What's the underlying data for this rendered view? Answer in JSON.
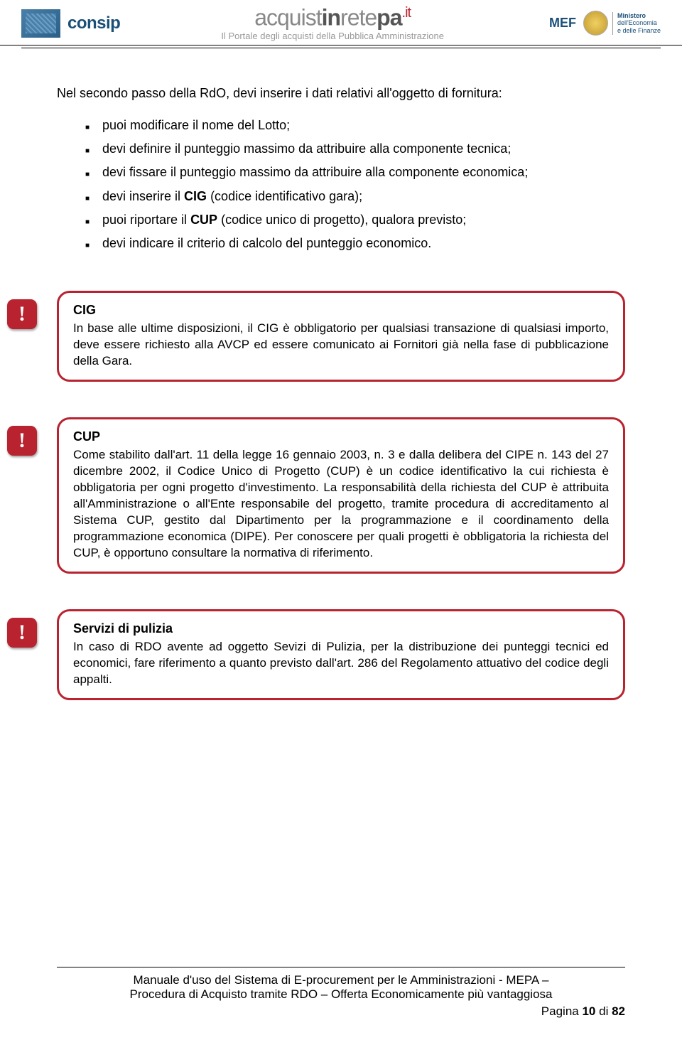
{
  "header": {
    "consip": "consip",
    "brand_part1": "acquist",
    "brand_part2": "in",
    "brand_part3": "rete",
    "brand_part4": "pa",
    "brand_suffix": ".it",
    "subtitle": "Il Portale degli acquisti della Pubblica Amministrazione",
    "mef_line1": "Ministero",
    "mef_line2": "dell'Economia",
    "mef_line3": "e delle Finanze"
  },
  "intro": "Nel secondo passo della RdO, devi inserire i dati relativi all'oggetto di fornitura:",
  "bullets": {
    "b1": "puoi modificare il nome del Lotto;",
    "b2": "devi definire il punteggio massimo da attribuire alla componente tecnica;",
    "b3_pre": "devi fissare il punteggio massimo da attribuire alla componente economica;",
    "b4_pre": "devi inserire il ",
    "b4_bold": "CIG",
    "b4_post": " (codice identificativo gara);",
    "b5_pre": "puoi riportare il ",
    "b5_bold": "CUP",
    "b5_post": " (codice unico di progetto), qualora previsto;",
    "b6": "devi indicare il criterio di calcolo del punteggio economico."
  },
  "callouts": {
    "cig": {
      "title": "CIG",
      "body": "In base alle ultime disposizioni, il CIG è obbligatorio per qualsiasi transazione di qualsiasi importo, deve essere richiesto alla AVCP ed essere comunicato ai Fornitori già nella fase di pubblicazione della Gara."
    },
    "cup": {
      "title": "CUP",
      "body": "Come stabilito dall'art. 11 della legge 16 gennaio 2003, n. 3 e dalla delibera del CIPE n. 143 del 27 dicembre 2002, il Codice Unico di Progetto (CUP) è un codice identificativo la cui richiesta è obbligatoria per ogni progetto d'investimento. La responsabilità della richiesta del CUP è attribuita all'Amministrazione o all'Ente responsabile del progetto, tramite procedura di accreditamento al Sistema CUP, gestito dal Dipartimento per la programmazione e il coordinamento della programmazione economica (DIPE). Per conoscere per quali progetti è obbligatoria la richiesta del CUP, è opportuno consultare la normativa di riferimento."
    },
    "pulizia": {
      "title": "Servizi di pulizia",
      "body": "In caso di RDO avente ad oggetto Sevizi di Pulizia, per la distribuzione dei punteggi tecnici ed economici, fare riferimento a quanto previsto dall'art. 286 del Regolamento attuativo del codice degli appalti."
    }
  },
  "footer": {
    "line1": "Manuale d'uso del Sistema di E-procurement per le Amministrazioni - MEPA –",
    "line2": "Procedura di Acquisto tramite RDO – Offerta Economicamente più vantaggiosa",
    "page_pre": "Pagina ",
    "page_num": "10",
    "page_mid": " di ",
    "page_total": "82"
  }
}
